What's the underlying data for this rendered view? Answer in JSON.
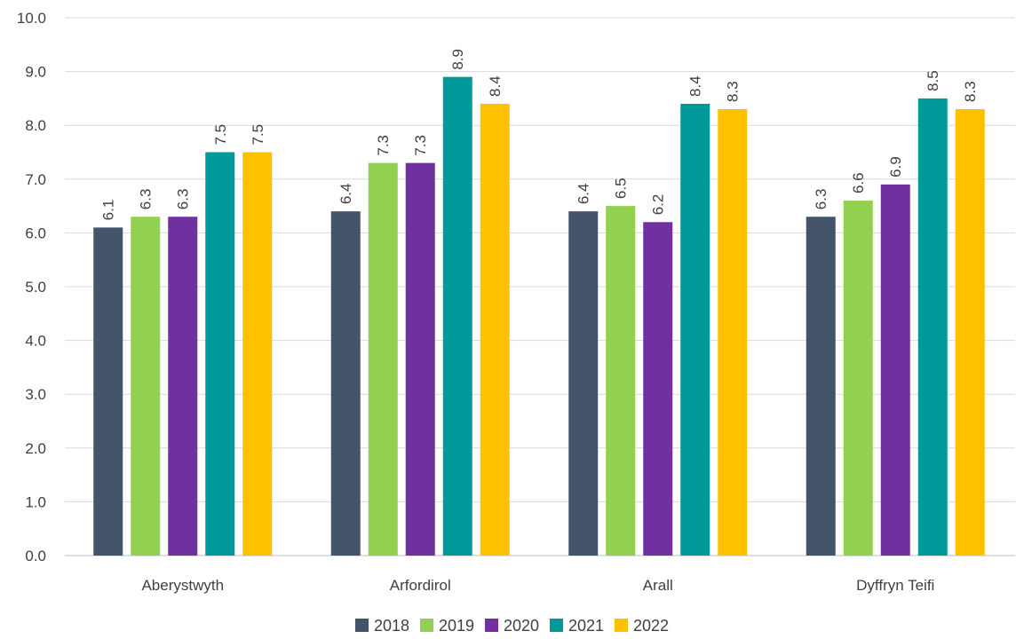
{
  "chart_data": {
    "type": "bar",
    "title": "",
    "xlabel": "",
    "ylabel": "",
    "categories": [
      "Aberystwyth",
      "Arfordirol",
      "Arall",
      "Dyffryn Teifi"
    ],
    "series": [
      {
        "name": "2018",
        "color": "#44546A",
        "values": [
          6.1,
          6.4,
          6.4,
          6.3
        ],
        "value_labels": [
          "6.1",
          "6.4",
          "6.4",
          "6.3"
        ]
      },
      {
        "name": "2019",
        "color": "#92D050",
        "values": [
          6.3,
          7.3,
          6.5,
          6.6
        ],
        "value_labels": [
          "6.3",
          "7.3",
          "6.5",
          "6.6"
        ]
      },
      {
        "name": "2020",
        "color": "#7030A0",
        "values": [
          6.3,
          7.3,
          6.2,
          6.9
        ],
        "value_labels": [
          "6.3",
          "7.3",
          "6.2",
          "6.9"
        ]
      },
      {
        "name": "2021",
        "color": "#009999",
        "values": [
          7.5,
          8.9,
          8.4,
          8.5
        ],
        "value_labels": [
          "7.5",
          "8.9",
          "8.4",
          "8.5"
        ]
      },
      {
        "name": "2022",
        "color": "#FFC000",
        "values": [
          7.5,
          8.4,
          8.3,
          8.3
        ],
        "value_labels": [
          "7.5",
          "8.4",
          "8.3",
          "8.3"
        ]
      }
    ],
    "ylim": [
      0,
      10
    ],
    "y_ticks": [
      "0.0",
      "1.0",
      "2.0",
      "3.0",
      "4.0",
      "5.0",
      "6.0",
      "7.0",
      "8.0",
      "9.0",
      "10.0"
    ],
    "grid": true,
    "legend_position": "bottom",
    "data_label_orientation": "rotated-vertical"
  }
}
